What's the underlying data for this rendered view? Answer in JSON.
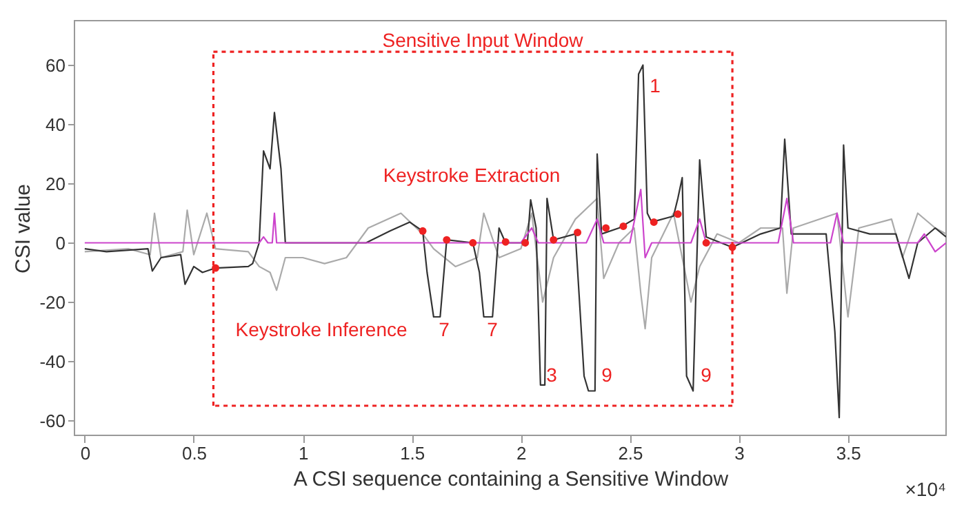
{
  "chart_data": {
    "type": "line",
    "xlabel": "A CSI sequence containing a Sensitive Window",
    "ylabel": "CSI value",
    "xlim": [
      -0.047,
      3.95
    ],
    "xticks": [
      0,
      0.5,
      1,
      1.5,
      2,
      2.5,
      3,
      3.5
    ],
    "ylim": [
      -65,
      75
    ],
    "yticks": [
      -60,
      -40,
      -20,
      0,
      20,
      40,
      60
    ],
    "grid": false,
    "series": [
      {
        "color": "#aaaaaa",
        "x": [
          0,
          0.2,
          0.3,
          0.32,
          0.35,
          0.45,
          0.47,
          0.5,
          0.56,
          0.6,
          0.75,
          0.8,
          0.85,
          0.88,
          0.92,
          1.0,
          1.1,
          1.2,
          1.3,
          1.45,
          1.55,
          1.6,
          1.7,
          1.8,
          1.83,
          1.9,
          2.0,
          2.05,
          2.1,
          2.15,
          2.25,
          2.35,
          2.38,
          2.45,
          2.52,
          2.55,
          2.57,
          2.6,
          2.7,
          2.78,
          2.82,
          2.9,
          3.0,
          3.1,
          3.2,
          3.22,
          3.25,
          3.45,
          3.5,
          3.55,
          3.7,
          3.75,
          3.82,
          3.9,
          3.95
        ],
        "values": [
          -3,
          -2,
          -4,
          10,
          -5,
          -3,
          11,
          -4,
          10,
          -2,
          -3,
          -8,
          -10,
          -16,
          -5,
          -5,
          -7,
          -5,
          5,
          10,
          3,
          -2,
          -8,
          -5,
          10,
          -5,
          -2,
          10,
          -20,
          -5,
          8,
          15,
          -12,
          0,
          5,
          -17,
          -29,
          -5,
          10,
          -20,
          -8,
          3,
          0,
          5,
          5,
          -17,
          5,
          10,
          -25,
          5,
          8,
          -5,
          10,
          5,
          3
        ]
      },
      {
        "color": "#333333",
        "x": [
          0,
          0.1,
          0.29,
          0.31,
          0.35,
          0.44,
          0.46,
          0.5,
          0.54,
          0.6,
          0.75,
          0.77,
          0.8,
          0.82,
          0.85,
          0.87,
          0.9,
          0.92,
          1.0,
          1.29,
          1.4,
          1.49,
          1.55,
          1.57,
          1.6,
          1.63,
          1.66,
          1.78,
          1.81,
          1.83,
          1.87,
          1.9,
          1.93,
          2.03,
          2.045,
          2.07,
          2.09,
          2.11,
          2.12,
          2.15,
          2.25,
          2.29,
          2.31,
          2.34,
          2.35,
          2.37,
          2.45,
          2.52,
          2.54,
          2.56,
          2.58,
          2.6,
          2.7,
          2.72,
          2.74,
          2.76,
          2.79,
          2.82,
          2.85,
          2.97,
          3.1,
          3.19,
          3.21,
          3.24,
          3.4,
          3.44,
          3.46,
          3.48,
          3.5,
          3.6,
          3.72,
          3.78,
          3.82,
          3.9,
          3.95
        ],
        "values": [
          -2,
          -3,
          -2,
          -9.5,
          -5,
          -4,
          -14,
          -8,
          -10,
          -8.5,
          -8,
          -7,
          0,
          31,
          25,
          44,
          25,
          0,
          0,
          0,
          4,
          7,
          4,
          -10,
          -25,
          -25,
          1,
          0,
          -10,
          -25,
          -25,
          5,
          0,
          0,
          14.5,
          5,
          -48,
          -48,
          15,
          1,
          3,
          -45,
          -50,
          -50,
          30,
          3,
          5,
          8,
          57,
          60,
          10,
          7,
          9,
          15,
          22,
          -45,
          -50,
          28,
          2,
          -1.5,
          3,
          5,
          35,
          3,
          3,
          -30,
          -59,
          33,
          5,
          3,
          3,
          -12,
          0,
          5,
          2
        ]
      },
      {
        "color": "#cc44cc",
        "x": [
          0,
          0.8,
          0.82,
          0.84,
          0.86,
          0.87,
          0.88,
          2.0,
          2.05,
          2.08,
          2.3,
          2.35,
          2.38,
          2.5,
          2.55,
          2.57,
          2.6,
          2.78,
          2.82,
          2.85,
          3.18,
          3.22,
          3.25,
          3.42,
          3.45,
          3.48,
          3.82,
          3.85,
          3.9,
          3.95
        ],
        "values": [
          0,
          0,
          2,
          0,
          0,
          10,
          0,
          0,
          5,
          0,
          0,
          8,
          0,
          0,
          18,
          -5,
          0,
          0,
          8,
          0,
          0,
          15,
          0,
          0,
          10,
          0,
          0,
          3,
          -3,
          0
        ]
      },
      {
        "type": "line",
        "line_style": "dotted",
        "color": "#ee2222",
        "x": [
          0.59,
          2.97
        ],
        "values": [
          64.5,
          64.5
        ]
      },
      {
        "type": "line",
        "line_style": "dotted",
        "color": "#ee2222",
        "x": [
          2.97,
          2.97
        ],
        "values": [
          64.5,
          -55
        ]
      },
      {
        "type": "line",
        "line_style": "dotted",
        "color": "#ee2222",
        "x": [
          2.97,
          0.59
        ],
        "values": [
          -55,
          -55
        ]
      },
      {
        "type": "line",
        "line_style": "dotted",
        "color": "#ee2222",
        "x": [
          0.59,
          0.59
        ],
        "values": [
          -55,
          64.5
        ]
      },
      {
        "type": "scatter",
        "marker": "circle",
        "color": "#ee2222",
        "x": [
          0.6,
          1.55,
          1.66,
          1.78,
          1.93,
          2.02,
          2.15,
          2.26,
          2.39,
          2.47,
          2.61,
          2.72,
          2.85,
          2.97
        ],
        "values": [
          -8.5,
          4,
          1,
          0,
          0.3,
          0,
          1,
          3.5,
          5,
          5.6,
          7,
          9.7,
          0,
          -1.5
        ]
      }
    ],
    "annotations": [
      "Sensitive Input Window",
      "Keystroke Extraction",
      "Keystroke Inference",
      "7",
      "7",
      "3",
      "9",
      "9",
      "1",
      "×10⁴"
    ]
  }
}
